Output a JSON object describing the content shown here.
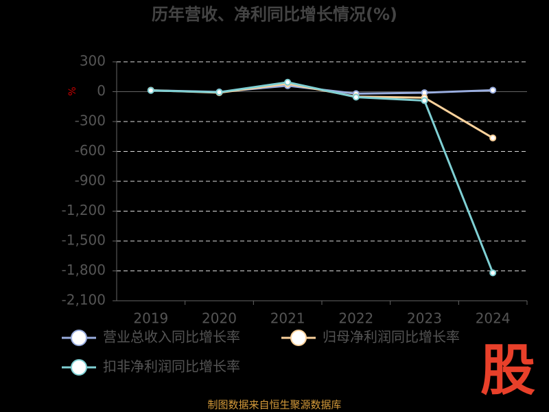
{
  "chart_data": {
    "type": "line",
    "title": "历年营收、净利同比增长情况(%)",
    "y_label": "%",
    "categories": [
      "2019",
      "2020",
      "2021",
      "2022",
      "2023",
      "2024"
    ],
    "series": [
      {
        "name": "营业总收入同比增长率",
        "color": "#9aaee0",
        "values": [
          14,
          -3,
          60,
          -20,
          -10,
          15
        ]
      },
      {
        "name": "归母净利润同比增长率",
        "color": "#fcd29c",
        "values": [
          14,
          -10,
          80,
          -50,
          -60,
          -465
        ]
      },
      {
        "name": "扣非净利润同比增长率",
        "color": "#7fd0d4",
        "values": [
          12,
          -5,
          95,
          -55,
          -90,
          -1820
        ]
      }
    ],
    "ylim": [
      -2100,
      300
    ],
    "yticks": [
      300,
      0,
      -300,
      -600,
      -900,
      {
        "value": -1200,
        "label": "-1,200"
      },
      {
        "value": -1500,
        "label": "-1,500"
      },
      {
        "value": -1800,
        "label": "-1,800"
      },
      {
        "value": -2100,
        "label": "-2,100"
      }
    ],
    "grid": true,
    "source": "制图数据来自恒生聚源数据库",
    "watermark": "股"
  }
}
